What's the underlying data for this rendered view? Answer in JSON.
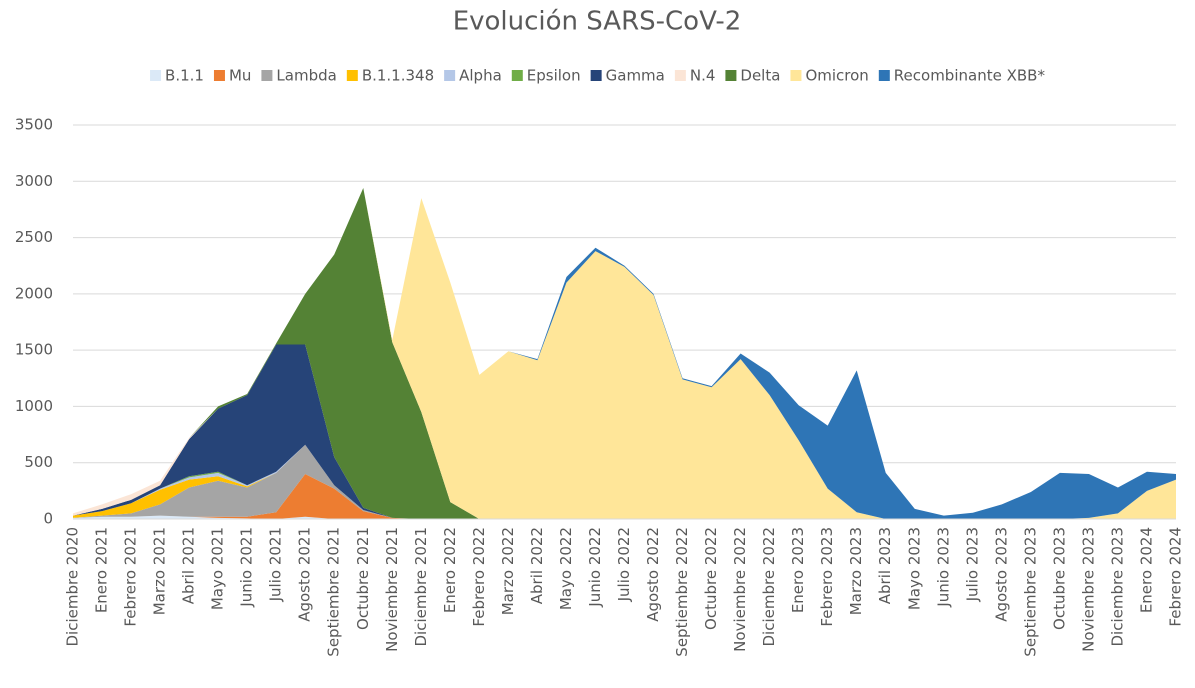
{
  "chart_data": {
    "type": "stacked-area",
    "title": "Evolución SARS-CoV-2",
    "categories": [
      "Diciembre 2020",
      "Enero 2021",
      "Febrero 2021",
      "Marzo 2021",
      "Abril 2021",
      "Mayo 2021",
      "Junio 2021",
      "Julio 2021",
      "Agosto 2021",
      "Septiembre 2021",
      "Octubre 2021",
      "Noviembre 2021",
      "Diciembre 2021",
      "Enero 2022",
      "Febrero 2022",
      "Marzo 2022",
      "Abril 2022",
      "Mayo 2022",
      "Junio 2022",
      "Julio 2022",
      "Agosto 2022",
      "Septiembre 2022",
      "Octubre 2022",
      "Noviembre 2022",
      "Diciembre 2022",
      "Enero 2023",
      "Febrero 2023",
      "Marzo 2023",
      "Abril 2023",
      "Mayo 2023",
      "Junio 2023",
      "Julio 2023",
      "Agosto 2023",
      "Septiembre 2023",
      "Octubre 2023",
      "Noviembre 2023",
      "Diciembre 2023",
      "Enero 2024",
      "Febrero 2024"
    ],
    "series": [
      {
        "name": "B.1.1",
        "color": "#dbe9f7",
        "values": [
          10,
          20,
          20,
          30,
          20,
          10,
          5,
          0,
          20,
          0,
          0,
          0,
          0,
          0,
          0,
          0,
          0,
          0,
          0,
          0,
          0,
          0,
          0,
          0,
          0,
          0,
          0,
          0,
          0,
          0,
          0,
          0,
          0,
          0,
          0,
          0,
          0,
          0,
          0
        ]
      },
      {
        "name": "Mu",
        "color": "#ed7d31",
        "values": [
          0,
          0,
          0,
          0,
          0,
          10,
          15,
          60,
          380,
          270,
          70,
          10,
          0,
          0,
          0,
          0,
          0,
          0,
          0,
          0,
          0,
          0,
          0,
          0,
          0,
          0,
          0,
          0,
          0,
          0,
          0,
          0,
          0,
          0,
          0,
          0,
          0,
          0,
          0
        ]
      },
      {
        "name": "Lambda",
        "color": "#a5a5a5",
        "values": [
          0,
          10,
          30,
          100,
          260,
          320,
          260,
          350,
          260,
          30,
          10,
          0,
          0,
          0,
          0,
          0,
          0,
          0,
          0,
          0,
          0,
          0,
          0,
          0,
          0,
          0,
          0,
          0,
          0,
          0,
          0,
          0,
          0,
          0,
          0,
          0,
          0,
          0,
          0
        ]
      },
      {
        "name": "B.1.1.348",
        "color": "#ffc000",
        "values": [
          20,
          40,
          90,
          130,
          70,
          40,
          10,
          0,
          0,
          0,
          0,
          0,
          0,
          0,
          0,
          0,
          0,
          0,
          0,
          0,
          0,
          0,
          0,
          0,
          0,
          0,
          0,
          0,
          0,
          0,
          0,
          0,
          0,
          0,
          0,
          0,
          0,
          0,
          0
        ]
      },
      {
        "name": "Alpha",
        "color": "#b4c7e7",
        "values": [
          0,
          0,
          0,
          10,
          20,
          30,
          10,
          10,
          0,
          0,
          0,
          0,
          0,
          0,
          0,
          0,
          0,
          0,
          0,
          0,
          0,
          0,
          0,
          0,
          0,
          0,
          0,
          0,
          0,
          0,
          0,
          0,
          0,
          0,
          0,
          0,
          0,
          0,
          0
        ]
      },
      {
        "name": "Epsilon",
        "color": "#70ad47",
        "values": [
          0,
          0,
          0,
          0,
          10,
          10,
          0,
          0,
          0,
          0,
          0,
          0,
          0,
          0,
          0,
          0,
          0,
          0,
          0,
          0,
          0,
          0,
          0,
          0,
          0,
          0,
          0,
          0,
          0,
          0,
          0,
          0,
          0,
          0,
          0,
          0,
          0,
          0,
          0
        ]
      },
      {
        "name": "Gamma",
        "color": "#264478",
        "values": [
          0,
          20,
          30,
          30,
          330,
          560,
          800,
          1130,
          890,
          250,
          20,
          0,
          0,
          0,
          0,
          0,
          0,
          0,
          0,
          0,
          0,
          0,
          0,
          0,
          0,
          0,
          0,
          0,
          0,
          0,
          0,
          0,
          0,
          0,
          0,
          0,
          0,
          0,
          0
        ]
      },
      {
        "name": "N.4",
        "color": "#fbe5d6",
        "values": [
          20,
          40,
          50,
          40,
          10,
          0,
          0,
          0,
          0,
          0,
          0,
          0,
          0,
          0,
          0,
          0,
          0,
          0,
          0,
          0,
          0,
          0,
          0,
          0,
          0,
          0,
          0,
          0,
          0,
          0,
          0,
          0,
          0,
          0,
          0,
          0,
          0,
          0,
          0
        ]
      },
      {
        "name": "Delta",
        "color": "#548235",
        "values": [
          0,
          0,
          0,
          0,
          0,
          20,
          10,
          10,
          450,
          1800,
          2840,
          1560,
          950,
          150,
          0,
          0,
          0,
          0,
          0,
          0,
          0,
          0,
          0,
          0,
          0,
          0,
          0,
          0,
          0,
          0,
          0,
          0,
          0,
          0,
          0,
          0,
          0,
          0,
          0
        ]
      },
      {
        "name": "Omicron",
        "color": "#ffe699",
        "values": [
          0,
          0,
          0,
          0,
          0,
          0,
          0,
          0,
          0,
          0,
          0,
          20,
          1900,
          1950,
          1280,
          1490,
          1410,
          2100,
          2380,
          2240,
          1990,
          1240,
          1170,
          1420,
          1100,
          700,
          270,
          60,
          0,
          0,
          0,
          0,
          0,
          0,
          0,
          10,
          50,
          250,
          350
        ]
      },
      {
        "name": "Recombinante XBB*",
        "color": "#2e75b6",
        "values": [
          0,
          0,
          0,
          0,
          0,
          0,
          0,
          0,
          0,
          0,
          0,
          0,
          0,
          0,
          0,
          0,
          10,
          50,
          30,
          10,
          10,
          10,
          10,
          50,
          200,
          310,
          560,
          1260,
          410,
          90,
          30,
          55,
          130,
          240,
          410,
          390,
          230,
          170,
          50
        ]
      }
    ],
    "ylim": [
      0,
      3500
    ],
    "yticks": [
      0,
      500,
      1000,
      1500,
      2000,
      2500,
      3000,
      3500
    ],
    "grid": true,
    "legend": "top"
  }
}
